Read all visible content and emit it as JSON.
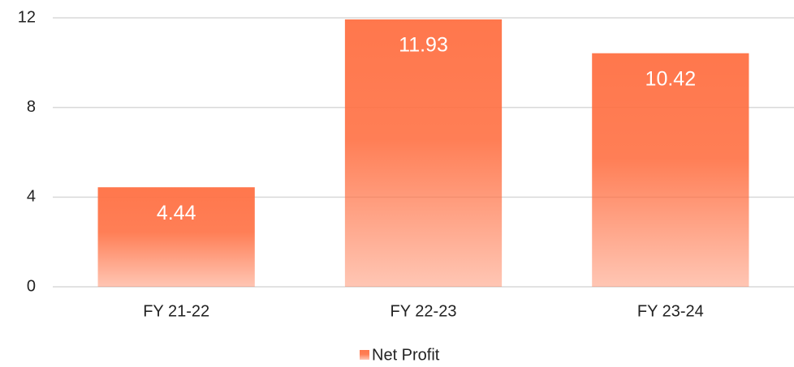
{
  "chart_data": {
    "type": "bar",
    "categories": [
      "FY 21-22",
      "FY 22-23",
      "FY 23-24"
    ],
    "series": [
      {
        "name": "Net Profit",
        "color": "#ff7043",
        "values": [
          4.44,
          11.93,
          10.42
        ]
      }
    ],
    "ylim": [
      0,
      12
    ],
    "yticks": [
      0,
      4,
      8,
      12
    ],
    "grid": true,
    "legend": "bottom"
  }
}
